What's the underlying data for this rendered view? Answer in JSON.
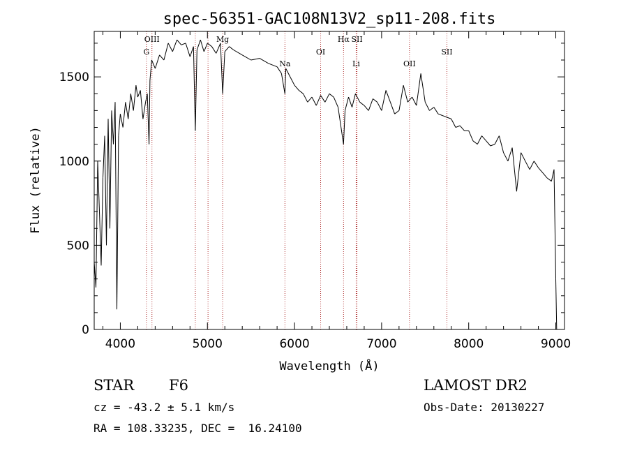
{
  "chart_data": {
    "type": "line",
    "title": "spec-56351-GAC108N13V2_sp11-208.fits",
    "xlabel": "Wavelength (Å)",
    "ylabel": "Flux (relative)",
    "xlim": [
      3700,
      9100
    ],
    "ylim": [
      0,
      1770
    ],
    "xticks": [
      4000,
      5000,
      6000,
      7000,
      8000,
      9000
    ],
    "yticks": [
      0,
      500,
      1000,
      1500
    ],
    "grid": false,
    "series": [
      {
        "x": [
          3700,
          3720,
          3740,
          3760,
          3780,
          3800,
          3820,
          3840,
          3860,
          3880,
          3900,
          3920,
          3940,
          3960,
          3980,
          4000,
          4030,
          4060,
          4090,
          4120,
          4150,
          4180,
          4200,
          4230,
          4260,
          4290,
          4310,
          4330,
          4340,
          4360,
          4400,
          4450,
          4500,
          4550,
          4600,
          4650,
          4700,
          4750,
          4800,
          4840,
          4861,
          4880,
          4920,
          4960,
          5000,
          5050,
          5100,
          5150,
          5175,
          5200,
          5250,
          5300,
          5400,
          5500,
          5600,
          5700,
          5800,
          5850,
          5890,
          5900,
          5950,
          6000,
          6050,
          6100,
          6150,
          6200,
          6250,
          6300,
          6350,
          6400,
          6450,
          6500,
          6563,
          6580,
          6620,
          6660,
          6700,
          6750,
          6800,
          6850,
          6900,
          6950,
          7000,
          7050,
          7100,
          7150,
          7200,
          7250,
          7300,
          7350,
          7400,
          7450,
          7500,
          7550,
          7600,
          7650,
          7700,
          7750,
          7800,
          7850,
          7900,
          7950,
          8000,
          8050,
          8100,
          8150,
          8200,
          8250,
          8300,
          8350,
          8400,
          8450,
          8500,
          8550,
          8600,
          8650,
          8700,
          8750,
          8800,
          8850,
          8900,
          8950,
          8980,
          9000,
          9010
        ],
        "y": [
          400,
          250,
          1000,
          700,
          380,
          900,
          1150,
          500,
          1250,
          600,
          1300,
          1100,
          1350,
          120,
          1150,
          1280,
          1200,
          1350,
          1250,
          1400,
          1300,
          1450,
          1380,
          1420,
          1250,
          1350,
          1400,
          1100,
          1480,
          1600,
          1550,
          1630,
          1600,
          1700,
          1650,
          1720,
          1690,
          1700,
          1620,
          1680,
          1180,
          1660,
          1720,
          1650,
          1700,
          1680,
          1640,
          1700,
          1400,
          1650,
          1680,
          1660,
          1630,
          1600,
          1610,
          1580,
          1560,
          1520,
          1400,
          1550,
          1500,
          1450,
          1420,
          1400,
          1350,
          1380,
          1330,
          1390,
          1350,
          1400,
          1380,
          1320,
          1100,
          1300,
          1380,
          1320,
          1400,
          1350,
          1330,
          1300,
          1370,
          1350,
          1300,
          1420,
          1350,
          1280,
          1300,
          1450,
          1350,
          1380,
          1330,
          1520,
          1350,
          1300,
          1320,
          1280,
          1270,
          1260,
          1250,
          1200,
          1210,
          1180,
          1180,
          1120,
          1100,
          1150,
          1120,
          1090,
          1100,
          1150,
          1050,
          1000,
          1080,
          820,
          1050,
          1000,
          950,
          1000,
          960,
          930,
          900,
          880,
          950,
          300,
          0
        ]
      }
    ],
    "spectral_lines": [
      {
        "label": "OIII",
        "x": 4363,
        "label_row": 1
      },
      {
        "label": "G",
        "x": 4300,
        "label_row": 2
      },
      {
        "label": "Mg",
        "x": 5175,
        "label_row": 1
      },
      {
        "label": "Na",
        "x": 5890,
        "label_row": 3
      },
      {
        "label": "OI",
        "x": 6300,
        "label_row": 2
      },
      {
        "label": "Hα",
        "x": 6563,
        "label_row": 1
      },
      {
        "label": "SII",
        "x": 6717,
        "label_row": 1
      },
      {
        "label": "Li",
        "x": 6708,
        "label_row": 3
      },
      {
        "label": "OII",
        "x": 7320,
        "label_row": 3
      },
      {
        "label": "SII",
        "x": 7750,
        "label_row": 2
      }
    ],
    "hidden_line_positions": [
      4861,
      5007
    ]
  },
  "info": {
    "class": "STAR",
    "subclass": "F6",
    "survey": "LAMOST DR2",
    "cz": "cz = -43.2 ± 5.1 km/s",
    "obs_date": "Obs-Date: 20130227",
    "coords": "RA = 108.33235, DEC =  16.24100"
  }
}
